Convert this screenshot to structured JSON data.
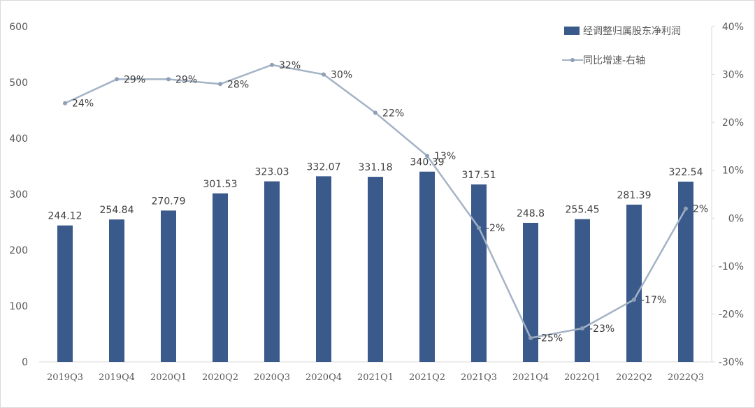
{
  "chart_data": {
    "type": "bar",
    "categories": [
      "2019Q3",
      "2019Q4",
      "2020Q1",
      "2020Q2",
      "2020Q3",
      "2020Q4",
      "2021Q1",
      "2021Q2",
      "2021Q3",
      "2021Q4",
      "2022Q1",
      "2022Q2",
      "2022Q3"
    ],
    "series": [
      {
        "name": "经调整归属股东净利润",
        "type": "bar",
        "axis": "left",
        "values": [
          244.12,
          254.84,
          270.79,
          301.53,
          323.03,
          332.07,
          331.18,
          340.39,
          317.51,
          248.8,
          255.45,
          281.39,
          322.54
        ],
        "labels": [
          "244.12",
          "254.84",
          "270.79",
          "301.53",
          "323.03",
          "332.07",
          "331.18",
          "340.39",
          "317.51",
          "248.8",
          "255.45",
          "281.39",
          "322.54"
        ]
      },
      {
        "name": "同比增速-右轴",
        "type": "line",
        "axis": "right",
        "values": [
          24,
          29,
          29,
          28,
          32,
          30,
          22,
          13,
          -2,
          -25,
          -23,
          -17,
          2
        ],
        "labels": [
          "24%",
          "29%",
          "29%",
          "28%",
          "32%",
          "30%",
          "22%",
          "13%",
          "-2%",
          "-25%",
          "-23%",
          "-17%",
          "2%"
        ]
      }
    ],
    "left_axis": {
      "min": 0,
      "max": 600,
      "ticks": [
        "0",
        "100",
        "200",
        "300",
        "400",
        "500",
        "600"
      ]
    },
    "right_axis": {
      "min": -30,
      "max": 40,
      "ticks": [
        "-30%",
        "-20%",
        "-10%",
        "0%",
        "10%",
        "20%",
        "30%",
        "40%"
      ]
    },
    "colors": {
      "bar": "#3a5a8c",
      "line": "#a4b3c6",
      "marker": "#8e9fb6"
    },
    "legend_position": "top-right",
    "grid": false
  }
}
